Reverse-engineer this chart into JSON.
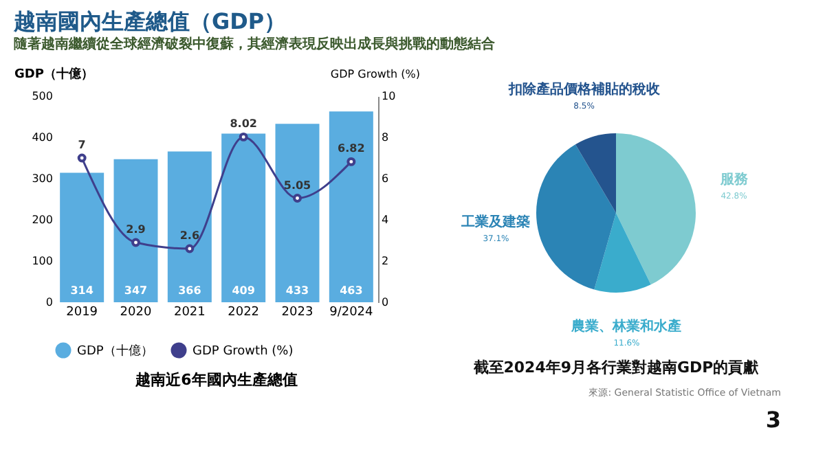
{
  "chart_data": [
    {
      "type": "bar",
      "title": "越南近6年國內生產總值",
      "ylabel": "GDP（十億）",
      "y2label": "GDP Growth (%)",
      "annotations": [
        "越南國內生產總值（GDP）",
        "隨著越南繼續從全球經濟破裂中復蘇，其經濟表現反映出成長與挑戰的動態結合"
      ],
      "categories": [
        "2019",
        "2020",
        "2021",
        "2022",
        "2023",
        "9/2024"
      ],
      "series": [
        {
          "name": "GDP（十億）",
          "type": "bar",
          "color": "#5aade0",
          "values": [
            314,
            347,
            366,
            409,
            433,
            463
          ]
        },
        {
          "name": "GDP Growth (%)",
          "type": "line",
          "axis": "y2",
          "color": "#3f3f8c",
          "values": [
            7,
            2.9,
            2.6,
            8.02,
            5.05,
            6.82
          ]
        }
      ],
      "ylim": [
        0,
        500
      ],
      "yticks": [
        0,
        100,
        200,
        300,
        400,
        500
      ],
      "y2lim": [
        0,
        10
      ],
      "y2ticks": [
        0,
        2,
        4,
        6,
        8,
        10
      ],
      "data_labels": true,
      "legend": "bottom",
      "marker": "circle"
    },
    {
      "type": "pie",
      "title": "截至2024年9月各行業對越南GDP的貢獻",
      "annotations": [
        "來源: General Statistic Office of Vietnam",
        "3"
      ],
      "categories": [
        "服務",
        "農業、林業和水產",
        "工業及建築",
        "扣除產品價格補貼的稅收"
      ],
      "values": [
        42.8,
        11.6,
        37.1,
        8.5
      ],
      "value_labels": [
        "42.8%",
        "11.6%",
        "37.1%",
        "8.5%"
      ],
      "colors": [
        "#7ecbd0",
        "#3aaccc",
        "#2b84b5",
        "#24548e"
      ]
    }
  ]
}
